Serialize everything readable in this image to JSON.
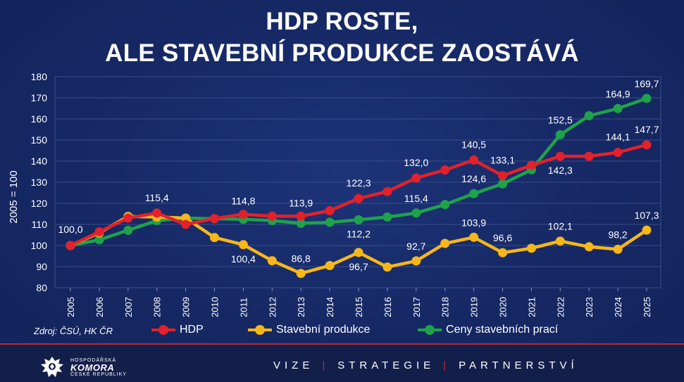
{
  "title": [
    "HDP ROSTE,",
    "ALE STAVEBNÍ PRODUKCE ZAOSTÁVÁ"
  ],
  "source": "Zdroj: ČSÚ, HK ČR",
  "footer": {
    "logo_top": "HOSPODÁŘSKÁ",
    "logo_main": "KOMORA",
    "logo_bottom": "ČESKÉ REPUBLIKY",
    "motto": [
      "VIZE",
      "STRATEGIE",
      "PARTNERSTVÍ"
    ]
  },
  "colors": {
    "background": "#172a66",
    "footer": "#131f4b",
    "accent_red": "#c62433",
    "hdp": "#e3212b",
    "stavebni": "#f7b719",
    "ceny": "#1ea34a",
    "grid": "#3a4d8a"
  },
  "chart_data": {
    "type": "line",
    "ylabel": "2005 = 100",
    "xlabel": "",
    "ylim": [
      80,
      180
    ],
    "yticks": [
      80,
      90,
      100,
      110,
      120,
      130,
      140,
      150,
      160,
      170,
      180
    ],
    "grid": "horizontal",
    "legend_position": "bottom",
    "categories": [
      "2005",
      "2006",
      "2007",
      "2008",
      "2009",
      "2010",
      "2011",
      "2012",
      "2013",
      "2014",
      "2015",
      "2016",
      "2017",
      "2018",
      "2019",
      "2020",
      "2021",
      "2022",
      "2023",
      "2024",
      "2025"
    ],
    "series": [
      {
        "name": "HDP",
        "color": "#e3212b",
        "values": [
          100.0,
          106.5,
          113.0,
          115.4,
          110.0,
          112.8,
          114.8,
          113.9,
          113.9,
          116.5,
          122.3,
          125.6,
          132.0,
          135.8,
          140.5,
          133.1,
          138.0,
          142.3,
          142.3,
          144.1,
          147.7
        ],
        "labels": {
          "2005": "100,0",
          "2008": "115,4",
          "2011": "114,8",
          "2013": "113,9",
          "2015": "122,3",
          "2017": "132,0",
          "2019": "140,5",
          "2020": "133,1",
          "2022": "142,3",
          "2024": "144,1",
          "2025": "147,7"
        }
      },
      {
        "name": "Stavební produkce",
        "color": "#f7b719",
        "values": [
          100.0,
          106.0,
          113.8,
          113.5,
          113.0,
          103.8,
          100.4,
          92.8,
          86.8,
          90.5,
          96.7,
          89.8,
          92.7,
          101.0,
          103.9,
          96.6,
          98.7,
          102.1,
          99.4,
          98.2,
          107.3
        ],
        "labels": {
          "2011": "100,4",
          "2013": "86,8",
          "2015": "96,7",
          "2017": "92,7",
          "2019": "103,9",
          "2020": "96,6",
          "2022": "102,1",
          "2024": "98,2",
          "2025": "107,3"
        }
      },
      {
        "name": "Ceny stavebních prací",
        "color": "#1ea34a",
        "values": [
          100.0,
          102.7,
          107.2,
          111.8,
          113.0,
          112.7,
          112.4,
          111.8,
          110.5,
          111.0,
          112.2,
          113.5,
          115.4,
          119.4,
          124.6,
          129.2,
          135.9,
          152.5,
          161.5,
          164.9,
          169.7
        ],
        "labels": {
          "2015": "112,2",
          "2017": "115,4",
          "2019": "124,6",
          "2022": "152,5",
          "2024": "164,9",
          "2025": "169,7"
        }
      }
    ]
  }
}
